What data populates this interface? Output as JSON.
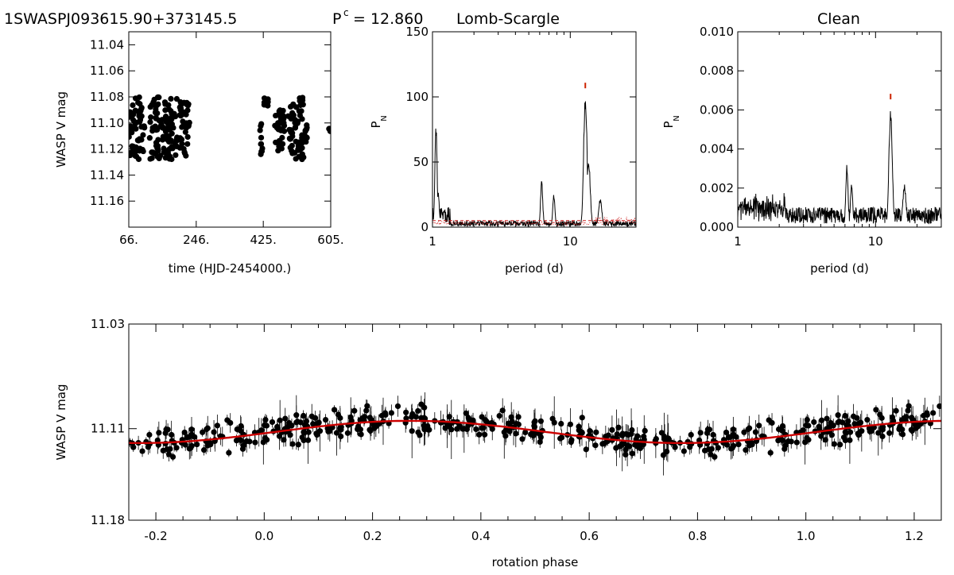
{
  "header": {
    "star_id": "1SWASPJ093615.90+373145.5",
    "period_label": "P",
    "period_sup": "c",
    "period_eq": "= 12.860",
    "method": "Lomb-Scargle",
    "clean_title": "Clean"
  },
  "colors": {
    "points": "#000000",
    "fit": "#cc0000",
    "noise": "#cc2222",
    "peak_marker": "#cc2200"
  },
  "chart_data": [
    {
      "id": "lightcurve",
      "type": "scatter",
      "title": "",
      "xlabel": "time (HJD-2454000.)",
      "ylabel": "WASP V mag",
      "xlim": [
        66,
        605
      ],
      "ylim": [
        11.18,
        11.03
      ],
      "y_reversed": true,
      "xticks": [
        "66.",
        "246.",
        "425.",
        "605."
      ],
      "yticks": [
        "11.04",
        "11.06",
        "11.08",
        "11.10",
        "11.12",
        "11.14",
        "11.16"
      ],
      "clusters": [
        {
          "x": [
            66,
            108
          ],
          "y": [
            11.08,
            11.128
          ]
        },
        {
          "x": [
            120,
            196
          ],
          "y": [
            11.08,
            11.128
          ]
        },
        {
          "x": [
            202,
            228
          ],
          "y": [
            11.082,
            11.126
          ]
        },
        {
          "x": [
            416,
            423
          ],
          "y": [
            11.1,
            11.125
          ]
        },
        {
          "x": [
            426,
            438
          ],
          "y": [
            11.081,
            11.087
          ]
        },
        {
          "x": [
            456,
            482
          ],
          "y": [
            11.09,
            11.122
          ]
        },
        {
          "x": [
            491,
            533
          ],
          "y": [
            11.08,
            11.128
          ]
        },
        {
          "x": [
            535,
            542
          ],
          "y": [
            11.1,
            11.115
          ]
        },
        {
          "x": [
            600,
            605
          ],
          "y": [
            11.104,
            11.108
          ]
        }
      ]
    },
    {
      "id": "periodogram",
      "type": "line",
      "title": "",
      "xlabel": "period (d)",
      "ylabel": "P",
      "ylabel_sub": "N",
      "x_log": true,
      "xlim": [
        1,
        30
      ],
      "ylim": [
        0,
        150
      ],
      "xticks": [
        "1",
        "10"
      ],
      "yticks": [
        "0",
        "50",
        "100",
        "150"
      ],
      "peak_period": 12.86,
      "peak_power": 106,
      "false_alarm_level": 5,
      "features": [
        {
          "x": 1.06,
          "y": 83
        },
        {
          "x": 1.1,
          "y": 27
        },
        {
          "x": 6.2,
          "y": 37
        },
        {
          "x": 7.6,
          "y": 26
        },
        {
          "x": 12.86,
          "y": 106
        },
        {
          "x": 13.6,
          "y": 52
        },
        {
          "x": 16.5,
          "y": 22
        }
      ]
    },
    {
      "id": "clean",
      "type": "line",
      "title": "Clean",
      "xlabel": "period (d)",
      "ylabel": "P",
      "ylabel_sub": "N",
      "x_log": true,
      "xlim": [
        1,
        30
      ],
      "ylim": [
        0,
        0.01
      ],
      "xticks": [
        "1",
        "10"
      ],
      "yticks": [
        "0.000",
        "0.002",
        "0.004",
        "0.006",
        "0.008",
        "0.010"
      ],
      "peak_period": 12.86,
      "peak_power": 0.0065,
      "features": [
        {
          "x": 6.2,
          "y": 0.0033
        },
        {
          "x": 6.7,
          "y": 0.0024
        },
        {
          "x": 12.86,
          "y": 0.0064
        },
        {
          "x": 16.2,
          "y": 0.0022
        }
      ]
    },
    {
      "id": "phase",
      "type": "scatter",
      "title": "",
      "xlabel": "rotation phase",
      "ylabel": "WASP V mag",
      "xlim": [
        -0.25,
        1.25
      ],
      "ylim": [
        11.18,
        11.03
      ],
      "y_reversed": true,
      "xticks": [
        "-0.2",
        "0.0",
        "0.2",
        "0.4",
        "0.6",
        "0.8",
        "1.0",
        "1.2"
      ],
      "yticks": [
        "11.03",
        "11.11",
        "11.18"
      ],
      "fit": {
        "mean": 11.1125,
        "amplitude": 0.0085,
        "min_phase": 0.27
      }
    }
  ]
}
